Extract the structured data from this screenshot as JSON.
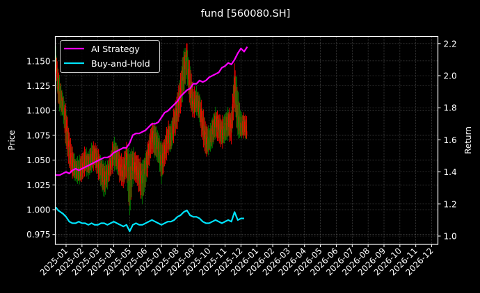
{
  "chart_data": {
    "type": "line",
    "title": "fund [560080.SH]",
    "xlabel": "",
    "ylabel": "Price",
    "ylabel_right": "Return",
    "grid": true,
    "legend_position": "upper left",
    "background": "#000000",
    "x_ticks": [
      "2025-01",
      "2025-02",
      "2025-03",
      "2025-04",
      "2025-05",
      "2025-06",
      "2025-07",
      "2025-08",
      "2025-09",
      "2025-10",
      "2025-11",
      "2025-12",
      "2026-01",
      "2026-02",
      "2026-03",
      "2026-04",
      "2026-05",
      "2026-06",
      "2026-07",
      "2026-08",
      "2026-09",
      "2026-10",
      "2026-11",
      "2026-12"
    ],
    "y_ticks_left": [
      "0.975",
      "1.000",
      "1.025",
      "1.050",
      "1.075",
      "1.100",
      "1.125",
      "1.150"
    ],
    "y_ticks_right": [
      "1.0",
      "1.2",
      "1.4",
      "1.6",
      "1.8",
      "2.0",
      "2.2"
    ],
    "ylim_left": [
      0.966,
      1.175
    ],
    "ylim_right": [
      0.96,
      2.25
    ],
    "legend": [
      {
        "name": "AI Strategy",
        "color": "#ff00ff"
      },
      {
        "name": "Buy-and-Hold",
        "color": "#00e5ff"
      }
    ],
    "candles": {
      "up_color": "#008000",
      "down_color": "#ff0000",
      "description": "Daily price candlesticks on left axis (Price)",
      "x_months": [
        -0.65,
        -0.5,
        -0.35,
        -0.2,
        0.0,
        0.2,
        0.4,
        0.6,
        0.8,
        1.0,
        1.2,
        1.4,
        1.6,
        1.8,
        2.0,
        2.2,
        2.4,
        2.6,
        2.8,
        3.0,
        3.2,
        3.4,
        3.6,
        3.8,
        4.0,
        4.2,
        4.4,
        4.6,
        4.8,
        5.0,
        5.2,
        5.4,
        5.6,
        5.8,
        6.0,
        6.2,
        6.4,
        6.6,
        6.8,
        7.0,
        7.2,
        7.4,
        7.6,
        7.8,
        8.0,
        8.2,
        8.4,
        8.6,
        8.8,
        9.0,
        9.2,
        9.4,
        9.6,
        9.8,
        10.0,
        10.2,
        10.4,
        10.6,
        10.8,
        11.0,
        11.2,
        11.4
      ],
      "close": [
        1.155,
        1.12,
        1.11,
        1.105,
        1.09,
        1.06,
        1.045,
        1.04,
        1.035,
        1.04,
        1.05,
        1.045,
        1.05,
        1.055,
        1.045,
        1.04,
        1.03,
        1.035,
        1.045,
        1.06,
        1.05,
        1.04,
        1.035,
        1.055,
        1.03,
        1.045,
        1.04,
        1.035,
        1.03,
        1.045,
        1.06,
        1.075,
        1.07,
        1.065,
        1.045,
        1.06,
        1.075,
        1.07,
        1.09,
        1.1,
        1.12,
        1.14,
        1.16,
        1.12,
        1.105,
        1.11,
        1.1,
        1.085,
        1.07,
        1.065,
        1.08,
        1.09,
        1.085,
        1.075,
        1.08,
        1.09,
        1.085,
        1.13,
        1.09,
        1.08,
        1.085,
        1.075
      ],
      "high": [
        1.165,
        1.145,
        1.13,
        1.12,
        1.105,
        1.08,
        1.065,
        1.055,
        1.055,
        1.06,
        1.065,
        1.06,
        1.07,
        1.07,
        1.065,
        1.055,
        1.05,
        1.05,
        1.06,
        1.075,
        1.07,
        1.06,
        1.055,
        1.07,
        1.06,
        1.065,
        1.06,
        1.055,
        1.05,
        1.06,
        1.075,
        1.09,
        1.09,
        1.08,
        1.07,
        1.075,
        1.09,
        1.09,
        1.105,
        1.12,
        1.14,
        1.165,
        1.165,
        1.15,
        1.125,
        1.125,
        1.12,
        1.105,
        1.09,
        1.085,
        1.095,
        1.105,
        1.1,
        1.095,
        1.1,
        1.105,
        1.1,
        1.15,
        1.125,
        1.1,
        1.1,
        1.095
      ],
      "low": [
        1.14,
        1.105,
        1.095,
        1.09,
        1.06,
        1.04,
        1.03,
        1.025,
        1.025,
        1.025,
        1.035,
        1.03,
        1.035,
        1.04,
        1.03,
        1.02,
        1.01,
        1.02,
        1.03,
        1.04,
        1.035,
        1.025,
        1.02,
        1.03,
        0.99,
        1.025,
        1.025,
        1.015,
        1.005,
        1.02,
        1.04,
        1.055,
        1.05,
        1.045,
        1.025,
        1.04,
        1.055,
        1.055,
        1.07,
        1.08,
        1.095,
        1.115,
        1.13,
        1.1,
        1.09,
        1.095,
        1.085,
        1.065,
        1.05,
        1.055,
        1.06,
        1.07,
        1.065,
        1.06,
        1.065,
        1.07,
        1.065,
        1.1,
        1.07,
        1.07,
        1.07,
        1.07
      ]
    },
    "series": [
      {
        "name": "AI Strategy",
        "axis": "right",
        "color": "#ff00ff",
        "x_months": [
          -0.65,
          -0.4,
          -0.2,
          0.0,
          0.2,
          0.4,
          0.6,
          0.8,
          1.0,
          1.2,
          1.4,
          1.6,
          1.8,
          2.0,
          2.2,
          2.4,
          2.6,
          2.8,
          3.0,
          3.2,
          3.4,
          3.6,
          3.8,
          4.0,
          4.2,
          4.4,
          4.6,
          4.8,
          5.0,
          5.2,
          5.4,
          5.6,
          5.8,
          6.0,
          6.2,
          6.4,
          6.6,
          6.8,
          7.0,
          7.2,
          7.4,
          7.6,
          7.8,
          8.0,
          8.2,
          8.4,
          8.6,
          8.8,
          9.0,
          9.2,
          9.4,
          9.6,
          9.8,
          10.0,
          10.2,
          10.4,
          10.6,
          10.8,
          11.0,
          11.2,
          11.4
        ],
        "values": [
          1.38,
          1.38,
          1.39,
          1.4,
          1.39,
          1.41,
          1.42,
          1.41,
          1.42,
          1.43,
          1.44,
          1.45,
          1.46,
          1.47,
          1.48,
          1.49,
          1.49,
          1.5,
          1.52,
          1.53,
          1.54,
          1.55,
          1.55,
          1.58,
          1.63,
          1.64,
          1.64,
          1.65,
          1.66,
          1.68,
          1.7,
          1.7,
          1.71,
          1.74,
          1.77,
          1.78,
          1.8,
          1.82,
          1.84,
          1.87,
          1.89,
          1.91,
          1.92,
          1.95,
          1.95,
          1.97,
          1.96,
          1.97,
          1.99,
          2.0,
          2.01,
          2.02,
          2.05,
          2.06,
          2.08,
          2.07,
          2.1,
          2.14,
          2.17,
          2.15,
          2.18
        ]
      },
      {
        "name": "Buy-and-Hold",
        "axis": "right",
        "color": "#00e5ff",
        "x_months": [
          -0.65,
          -0.5,
          -0.35,
          -0.2,
          0.0,
          0.2,
          0.4,
          0.6,
          0.8,
          1.0,
          1.2,
          1.4,
          1.6,
          1.8,
          2.0,
          2.2,
          2.4,
          2.6,
          2.8,
          3.0,
          3.2,
          3.4,
          3.6,
          3.8,
          4.0,
          4.2,
          4.4,
          4.6,
          4.8,
          5.0,
          5.2,
          5.4,
          5.6,
          5.8,
          6.0,
          6.2,
          6.4,
          6.6,
          6.8,
          7.0,
          7.2,
          7.4,
          7.6,
          7.8,
          8.0,
          8.2,
          8.4,
          8.6,
          8.8,
          9.0,
          9.2,
          9.4,
          9.6,
          9.8,
          10.0,
          10.2,
          10.4,
          10.6,
          10.8,
          11.0,
          11.2,
          11.4
        ],
        "values": [
          1.18,
          1.16,
          1.15,
          1.14,
          1.12,
          1.09,
          1.08,
          1.08,
          1.09,
          1.08,
          1.08,
          1.07,
          1.08,
          1.07,
          1.07,
          1.08,
          1.08,
          1.07,
          1.08,
          1.09,
          1.08,
          1.07,
          1.06,
          1.07,
          1.03,
          1.07,
          1.08,
          1.07,
          1.07,
          1.08,
          1.09,
          1.1,
          1.09,
          1.08,
          1.07,
          1.08,
          1.09,
          1.09,
          1.1,
          1.12,
          1.13,
          1.15,
          1.16,
          1.13,
          1.12,
          1.12,
          1.11,
          1.09,
          1.08,
          1.08,
          1.09,
          1.1,
          1.09,
          1.08,
          1.09,
          1.1,
          1.09,
          1.15,
          1.1,
          1.11,
          1.11
        ]
      }
    ]
  }
}
